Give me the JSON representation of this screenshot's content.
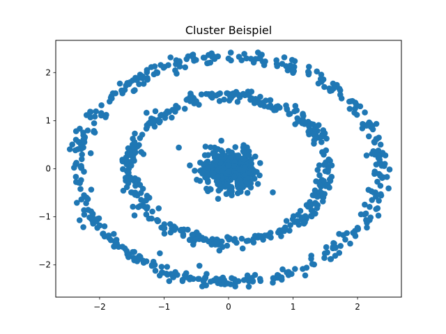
{
  "chart_data": {
    "type": "scatter",
    "title": "Cluster Beispiel",
    "xlabel": "",
    "ylabel": "",
    "xlim": [
      -2.68,
      2.68
    ],
    "ylim": [
      -2.67,
      2.67
    ],
    "x_ticks": [
      -2,
      -1,
      0,
      1,
      2
    ],
    "y_ticks": [
      -2,
      -1,
      0,
      1,
      2
    ],
    "x_tick_labels": [
      "−2",
      "−1",
      "0",
      "1",
      "2"
    ],
    "y_tick_labels": [
      "−2",
      "−1",
      "0",
      "1",
      "2"
    ],
    "grid": false,
    "legend": "none",
    "marker_color": "#1f77b4",
    "marker": "circle",
    "clusters": [
      {
        "shape": "ring",
        "center": [
          0,
          0
        ],
        "radius": 2.35,
        "spread": 0.07,
        "count": 430
      },
      {
        "shape": "ring",
        "center": [
          0,
          0
        ],
        "radius": 1.53,
        "spread": 0.07,
        "count": 400
      },
      {
        "shape": "blob",
        "center": [
          0,
          0
        ],
        "radius": 0.0,
        "spread": 0.2,
        "count": 430
      }
    ]
  }
}
